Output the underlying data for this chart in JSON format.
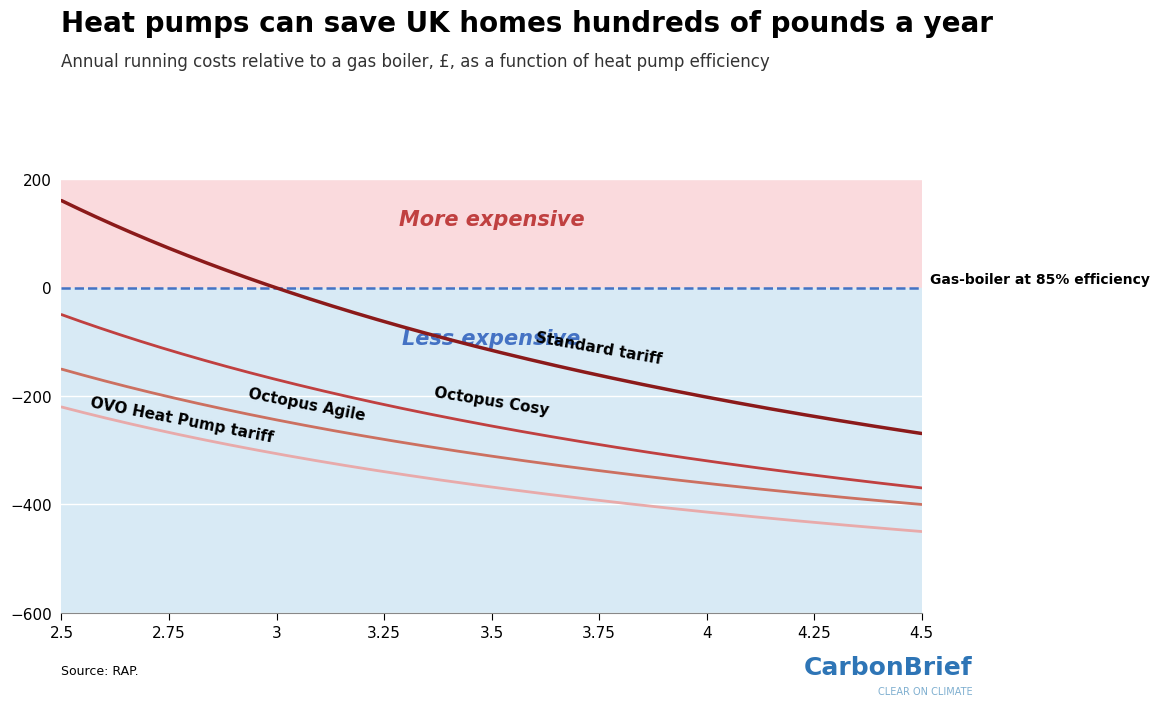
{
  "title": "Heat pumps can save UK homes hundreds of pounds a year",
  "subtitle": "Annual running costs relative to a gas boiler, £, as a function of heat pump efficiency",
  "source": "Source: RAP.",
  "x_min": 2.5,
  "x_max": 4.5,
  "y_min": -600,
  "y_max": 200,
  "x_ticks": [
    2.5,
    2.75,
    3.0,
    3.25,
    3.5,
    3.75,
    4.0,
    4.25,
    4.5
  ],
  "y_ticks": [
    -600,
    -400,
    -200,
    0,
    200
  ],
  "lines": [
    {
      "label": "Standard tariff",
      "color": "#8B1A1A",
      "lw": 2.5,
      "A": 2416,
      "B": -806
    },
    {
      "label": "Octopus Cosy",
      "color": "#C04040",
      "lw": 2.0,
      "A": 1798,
      "B": -769
    },
    {
      "label": "Octopus Agile",
      "color": "#CC7060",
      "lw": 2.0,
      "A": 1404,
      "B": -712
    },
    {
      "label": "OVO Heat Pump tariff",
      "color": "#E8AAAA",
      "lw": 2.0,
      "A": 1292,
      "B": -737
    }
  ],
  "gas_boiler_label": "Gas-boiler at 85% efficiency",
  "gas_boiler_color": "#4472C4",
  "more_expensive_label": "More expensive",
  "less_expensive_label": "Less expensive",
  "more_expensive_color": "#C04040",
  "less_expensive_color": "#4472C4",
  "bg_above_color": "#FADADD",
  "bg_below_color": "#D8EAF5",
  "carbonbrief_text": "CarbonBrief",
  "carbonbrief_sub": "CLEAR ON CLIMATE",
  "carbonbrief_color": "#2E75B6",
  "carbonbrief_sub_color": "#7FAFD0",
  "title_fontsize": 20,
  "subtitle_fontsize": 12,
  "tick_fontsize": 11,
  "annotation_fontsize": 11,
  "label_large_fontsize": 15
}
